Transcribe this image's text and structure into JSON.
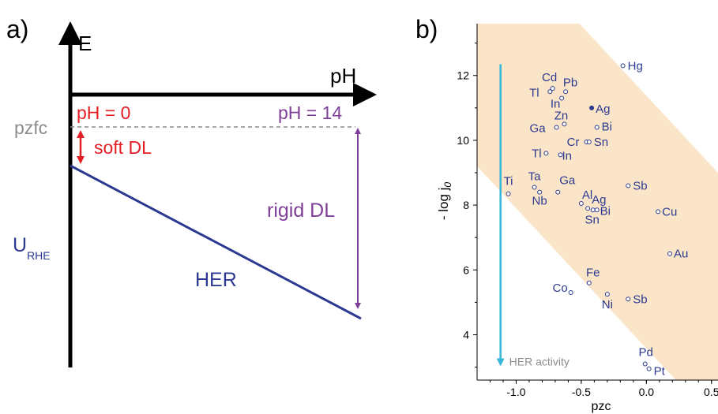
{
  "panel_a": {
    "panel_label": "a)",
    "y_axis_label": "E",
    "x_axis_label": "pH",
    "pzfc_label": "pzfc",
    "ph0_label": "pH = 0",
    "ph14_label": "pH = 14",
    "soft_dl_label": "soft DL",
    "rigid_dl_label": "rigid DL",
    "urhe_label": "U",
    "urhe_sub": "RHE",
    "her_label": "HER",
    "colors": {
      "axis": "#000000",
      "her": "#2b3990",
      "soft": "#e31e24",
      "rigid": "#7f3f98",
      "pzfc": "#8c8c8c"
    }
  },
  "panel_b": {
    "panel_label": "b)",
    "arrow_label": "HER activity",
    "colors": {
      "points": "#2b3990",
      "band": "#fbe5c8",
      "arrow": "#36b6d9",
      "arrow_label": "#8c8c8c"
    }
  },
  "chart_data": {
    "type": "scatter",
    "xlabel": "pzc",
    "ylabel": "- log j",
    "ylabel_sub": "0",
    "xlim": [
      -1.3,
      0.55
    ],
    "ylim": [
      2.6,
      13.6
    ],
    "xticks": [
      -1.0,
      -0.5,
      0.0,
      0.5
    ],
    "xtick_labels": [
      "-1.0",
      "-0.5",
      "0.0",
      "0.5"
    ],
    "yticks": [
      4,
      6,
      8,
      10,
      12
    ],
    "ytick_labels": [
      "4",
      "6",
      "8",
      "10",
      "12"
    ],
    "grid": false,
    "points": [
      {
        "label": "Hg",
        "x": -0.18,
        "y": 12.3
      },
      {
        "label": "Cd",
        "x": -0.72,
        "y": 11.6
      },
      {
        "label": "Pb",
        "x": -0.62,
        "y": 11.5
      },
      {
        "label": "Tl",
        "x": -0.74,
        "y": 11.5
      },
      {
        "label": "In",
        "x": -0.65,
        "y": 11.3
      },
      {
        "label": "Ag",
        "x": -0.42,
        "y": 11.0,
        "filled": true
      },
      {
        "label": "Zn",
        "x": -0.63,
        "y": 10.5
      },
      {
        "label": "Ga",
        "x": -0.69,
        "y": 10.4
      },
      {
        "label": "Bi",
        "x": -0.38,
        "y": 10.4
      },
      {
        "label": "Cr",
        "x": -0.46,
        "y": 9.95
      },
      {
        "label": "Sn",
        "x": -0.44,
        "y": 9.95
      },
      {
        "label": "Tl",
        "x": -0.77,
        "y": 9.6
      },
      {
        "label": "In",
        "x": -0.66,
        "y": 9.55
      },
      {
        "label": "Ti",
        "x": -1.06,
        "y": 8.35
      },
      {
        "label": "Ta",
        "x": -0.86,
        "y": 8.55
      },
      {
        "label": "Nb",
        "x": -0.82,
        "y": 8.4
      },
      {
        "label": "Ga",
        "x": -0.68,
        "y": 8.4
      },
      {
        "label": "Sb",
        "x": -0.14,
        "y": 8.6
      },
      {
        "label": "Al",
        "x": -0.5,
        "y": 8.05
      },
      {
        "label": "Ag",
        "x": -0.45,
        "y": 7.9
      },
      {
        "label": "Sn",
        "x": -0.41,
        "y": 7.85
      },
      {
        "label": "Bi",
        "x": -0.38,
        "y": 7.85
      },
      {
        "label": "Cu",
        "x": 0.09,
        "y": 7.8
      },
      {
        "label": "Au",
        "x": 0.18,
        "y": 6.5
      },
      {
        "label": "Fe",
        "x": -0.44,
        "y": 5.6
      },
      {
        "label": "Co",
        "x": -0.58,
        "y": 5.3
      },
      {
        "label": "Ni",
        "x": -0.3,
        "y": 5.25
      },
      {
        "label": "Sb",
        "x": -0.14,
        "y": 5.1
      },
      {
        "label": "Pd",
        "x": -0.01,
        "y": 3.1
      },
      {
        "label": "Pt",
        "x": 0.02,
        "y": 2.95
      }
    ],
    "band": {
      "upper_line": [
        [
          -1.3,
          17.0
        ],
        [
          0.55,
          9.0
        ]
      ],
      "lower_line": [
        [
          -1.3,
          9.2
        ],
        [
          0.55,
          1.2
        ]
      ]
    }
  }
}
